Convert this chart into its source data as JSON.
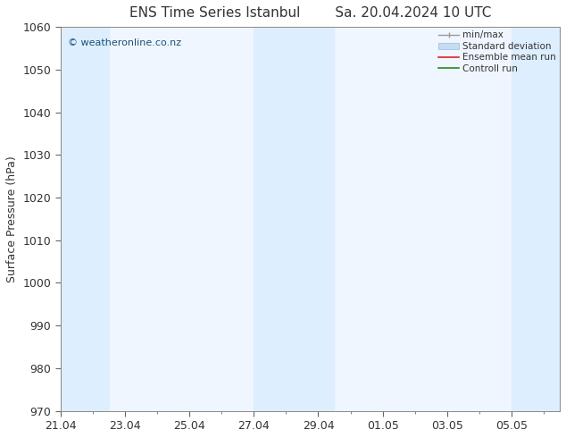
{
  "title_left": "ENS Time Series Istanbul",
  "title_right": "Sa. 20.04.2024 10 UTC",
  "ylabel": "Surface Pressure (hPa)",
  "ylim": [
    970,
    1060
  ],
  "yticks": [
    970,
    980,
    990,
    1000,
    1010,
    1020,
    1030,
    1040,
    1050,
    1060
  ],
  "x_tick_labels": [
    "21.04",
    "23.04",
    "25.04",
    "27.04",
    "29.04",
    "01.05",
    "03.05",
    "05.05"
  ],
  "x_tick_positions": [
    0,
    2,
    4,
    6,
    8,
    10,
    12,
    14
  ],
  "x_min": 0,
  "x_max": 15.5,
  "shaded_bands": [
    {
      "x_start": 0.0,
      "x_end": 1.5,
      "color": "#ddeeff"
    },
    {
      "x_start": 6.0,
      "x_end": 8.5,
      "color": "#ddeeff"
    },
    {
      "x_start": 14.0,
      "x_end": 15.5,
      "color": "#ddeeff"
    }
  ],
  "plot_bg_color": "#f0f6ff",
  "fig_bg_color": "#ffffff",
  "watermark": "© weatheronline.co.nz",
  "watermark_color": "#1a5276",
  "legend_labels": [
    "min/max",
    "Standard deviation",
    "Ensemble mean run",
    "Controll run"
  ],
  "minmax_color": "#999999",
  "stddev_color": "#c5ddf0",
  "mean_color": "#dd2222",
  "control_color": "#228822",
  "tick_font_size": 9,
  "label_font_size": 9,
  "title_font_size": 11
}
